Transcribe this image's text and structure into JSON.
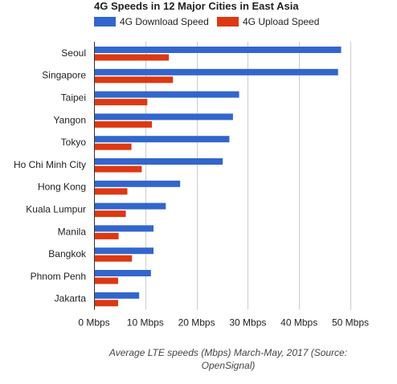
{
  "chart_data": {
    "type": "bar",
    "orientation": "horizontal",
    "title": "4G Speeds in 12 Major Cities in East Asia",
    "caption_lines": [
      "Average LTE speeds (Mbps) March-May, 2017 (Source:",
      "OpenSignal)"
    ],
    "categories": [
      "Seoul",
      "Singapore",
      "Taipei",
      "Yangon",
      "Tokyo",
      "Ho Chi Minh City",
      "Hong Kong",
      "Kuala Lumpur",
      "Manila",
      "Bangkok",
      "Phnom Penh",
      "Jakarta"
    ],
    "series": [
      {
        "name": "4G Download Speed",
        "color": "#3366cc",
        "values": [
          48.2,
          47.6,
          28.3,
          27.1,
          26.4,
          25.1,
          16.8,
          14.0,
          11.6,
          11.6,
          11.1,
          8.8
        ]
      },
      {
        "name": "4G Upload Speed",
        "color": "#dc3912",
        "values": [
          14.6,
          15.4,
          10.4,
          11.3,
          7.3,
          9.3,
          6.5,
          6.2,
          4.8,
          7.4,
          4.7,
          4.7
        ]
      }
    ],
    "xlim": [
      0,
      50
    ],
    "xticks": [
      0,
      10,
      20,
      30,
      40,
      50
    ],
    "tick_labels": [
      "0 Mbps",
      "10 Mbps",
      "20 Mbps",
      "30 Mbps",
      "40 Mbps",
      "50 Mbps"
    ],
    "grid": true,
    "legend_position": "top"
  }
}
